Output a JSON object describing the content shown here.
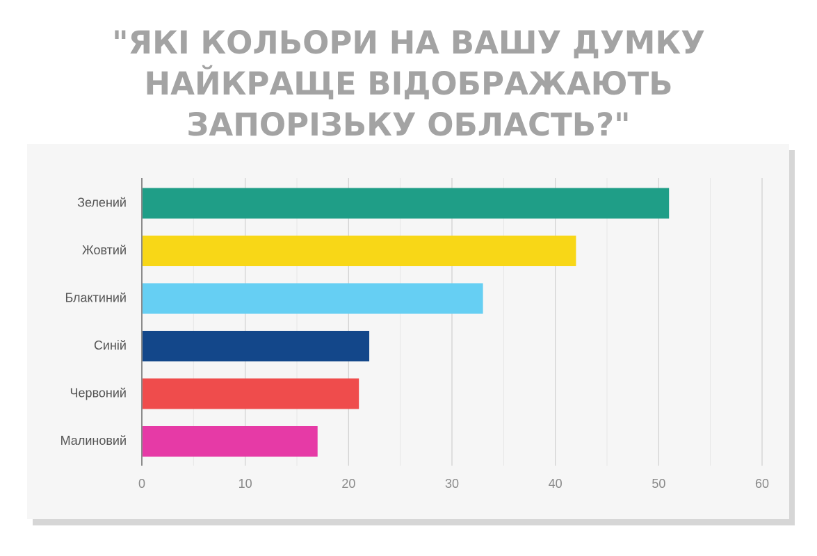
{
  "title_lines": [
    "\"ЯКІ КОЛЬОРИ НА ВАШУ ДУМКУ",
    "НАЙКРАЩЕ ВІДОБРАЖАЮТЬ",
    "ЗАПОРІЗЬКУ ОБЛАСТЬ?\""
  ],
  "chart_data": {
    "type": "bar",
    "orientation": "horizontal",
    "title": "\"ЯКІ КОЛЬОРИ НА ВАШУ ДУМКУ НАЙКРАЩЕ ВІДОБРАЖАЮТЬ ЗАПОРІЗЬКУ ОБЛАСТЬ?\"",
    "categories": [
      "Зелений",
      "Жовтий",
      "Блактиний",
      "Синій",
      "Червоний",
      "Малиновий"
    ],
    "values": [
      51,
      42,
      33,
      22,
      21,
      17
    ],
    "colors": [
      "#1f9e87",
      "#f8d717",
      "#66cff3",
      "#13478a",
      "#ef4c4c",
      "#e63aa6"
    ],
    "xlim": [
      0,
      60
    ],
    "x_ticks": [
      "0",
      "10",
      "20",
      "30",
      "40",
      "50",
      "60"
    ],
    "x_tick_values": [
      0,
      10,
      20,
      30,
      40,
      50,
      60
    ],
    "minor_grid_step": 5,
    "grid": true,
    "legend": "none",
    "xlabel": "",
    "ylabel": ""
  }
}
